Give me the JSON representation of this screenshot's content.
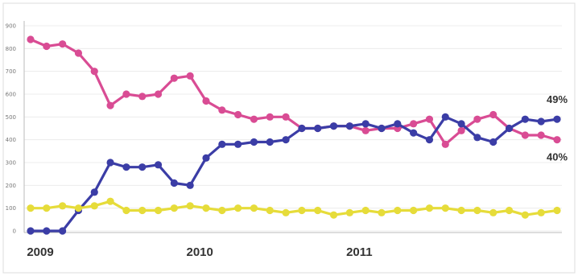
{
  "chart_data": {
    "type": "line",
    "title": "",
    "xlabel": "",
    "ylabel": "",
    "ylim": [
      0,
      900
    ],
    "yticks": [
      0,
      100,
      200,
      300,
      400,
      500,
      600,
      700,
      800,
      900
    ],
    "xtick_labels": [
      {
        "index": 0,
        "label": "2009"
      },
      {
        "index": 10,
        "label": "2010"
      },
      {
        "index": 20,
        "label": "2011"
      }
    ],
    "grid": true,
    "legend": "none",
    "series": [
      {
        "color": "#d94c94",
        "values": [
          840,
          810,
          820,
          780,
          700,
          550,
          600,
          590,
          600,
          670,
          680,
          570,
          530,
          510,
          490,
          500,
          500,
          450,
          450,
          460,
          460,
          440,
          450,
          450,
          470,
          490,
          380,
          440,
          490,
          510,
          450,
          420,
          420,
          400
        ]
      },
      {
        "color": "#3b3da6",
        "values": [
          0,
          0,
          0,
          90,
          170,
          300,
          280,
          280,
          290,
          210,
          200,
          320,
          380,
          380,
          390,
          390,
          400,
          450,
          450,
          460,
          460,
          470,
          450,
          470,
          430,
          400,
          500,
          470,
          410,
          390,
          450,
          490,
          480,
          490
        ]
      },
      {
        "color": "#e6dc3a",
        "values": [
          100,
          100,
          110,
          100,
          110,
          130,
          90,
          90,
          90,
          100,
          110,
          100,
          90,
          100,
          100,
          90,
          80,
          90,
          90,
          70,
          80,
          90,
          80,
          90,
          90,
          100,
          100,
          90,
          90,
          80,
          90,
          70,
          80,
          90
        ]
      }
    ],
    "data_labels": [
      {
        "series": 1,
        "index": 33,
        "text": "49%"
      },
      {
        "series": 0,
        "index": 33,
        "text": "40%"
      }
    ]
  }
}
